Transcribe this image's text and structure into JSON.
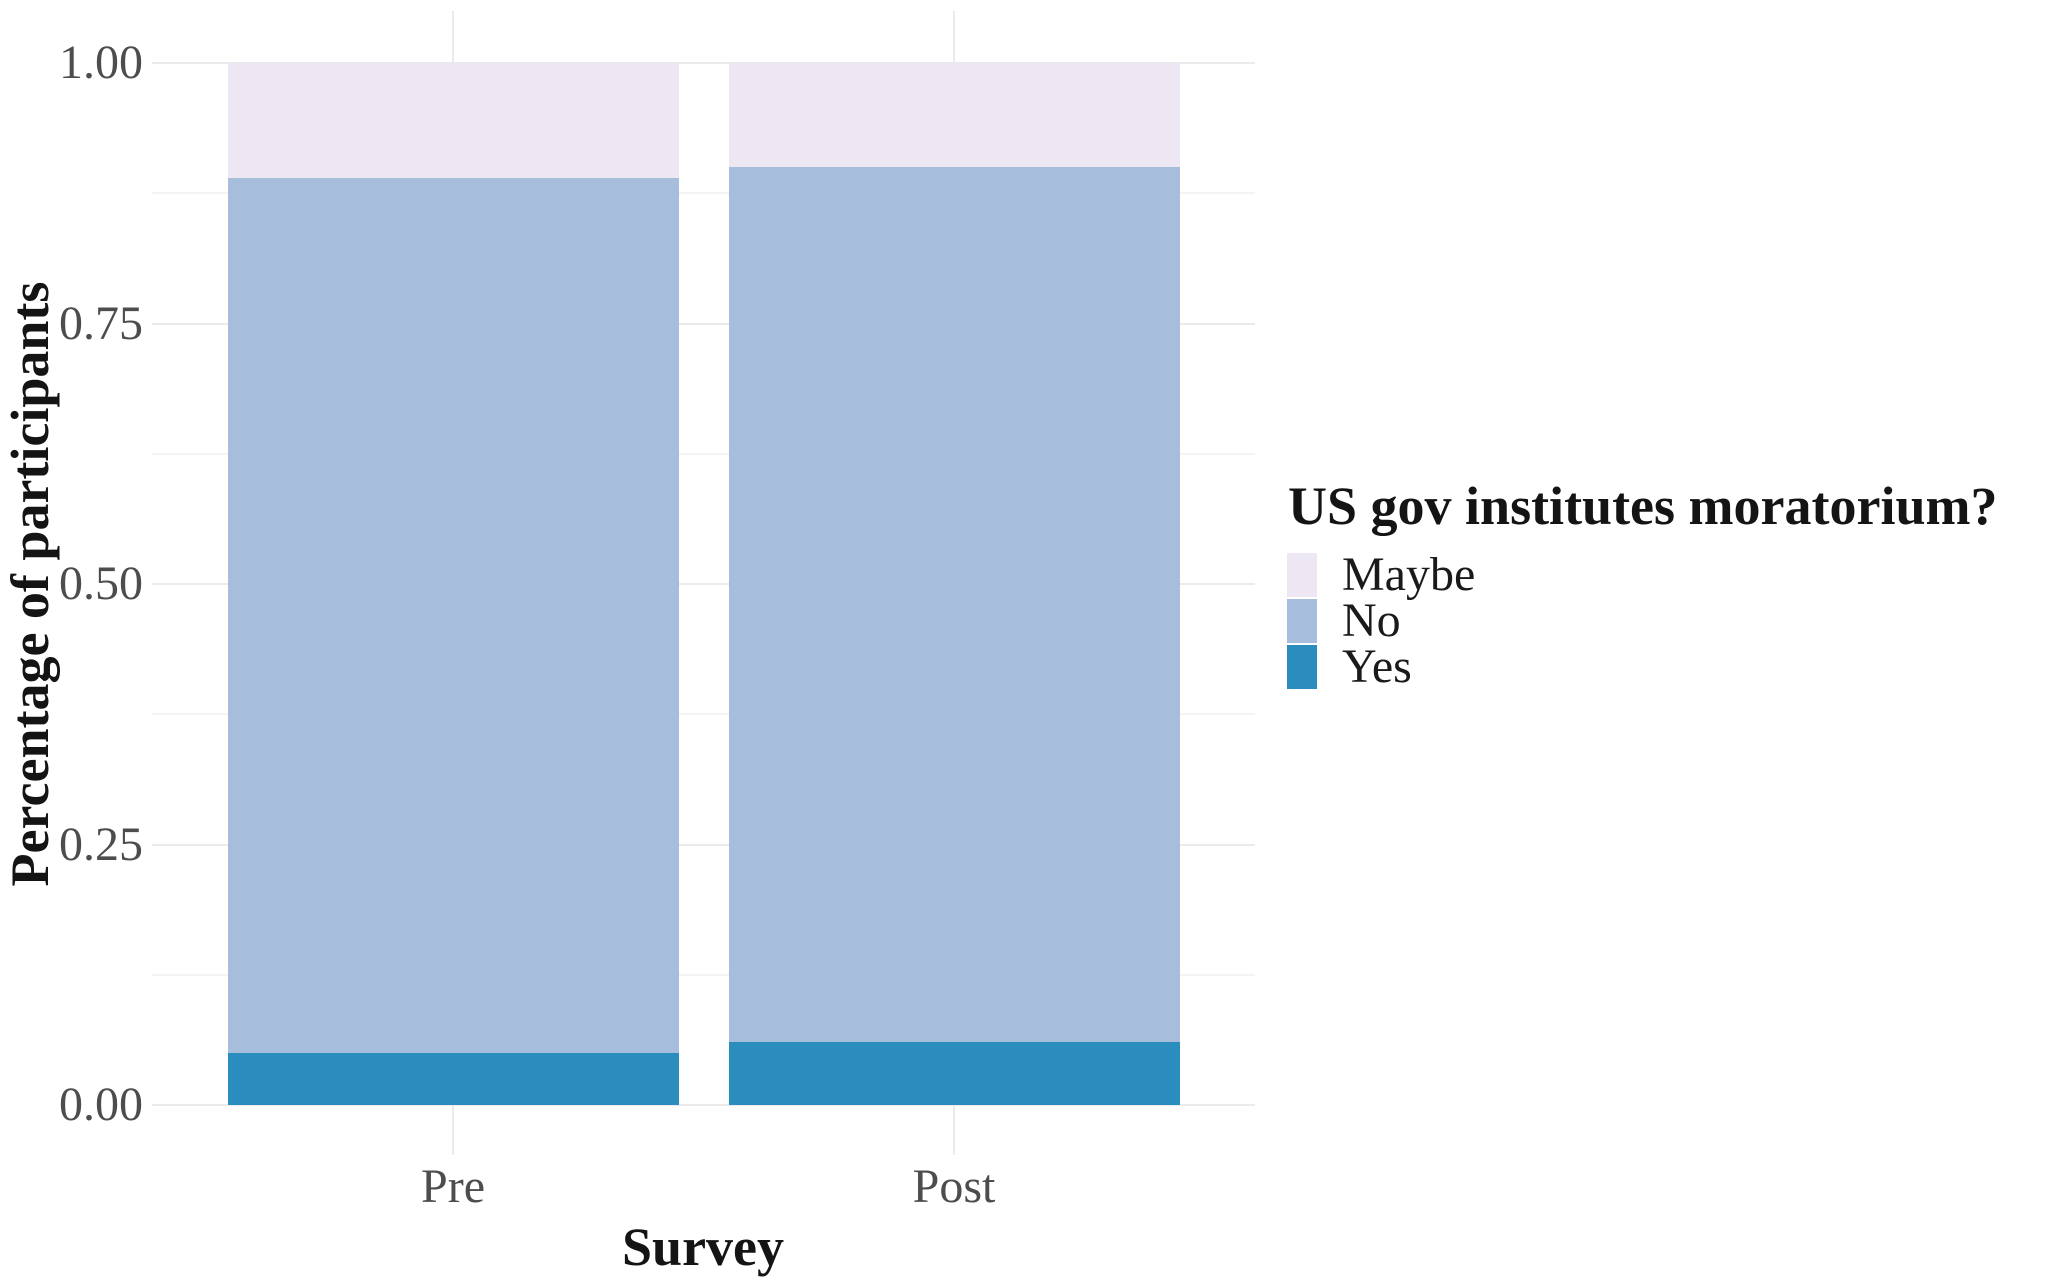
{
  "chart_data": {
    "type": "bar",
    "stacked": true,
    "title": "",
    "xlabel": "Survey",
    "ylabel": "Percentage of participants",
    "legend_title": "US gov institutes moratorium?",
    "legend_position": "right",
    "categories": [
      "Pre",
      "Post"
    ],
    "series": [
      {
        "name": "Maybe",
        "color": "#ece7f2",
        "values": [
          0.11,
          0.1
        ]
      },
      {
        "name": "No",
        "color": "#a6bddb",
        "values": [
          0.84,
          0.84
        ]
      },
      {
        "name": "Yes",
        "color": "#2b8cbe",
        "values": [
          0.05,
          0.06
        ]
      }
    ],
    "stack_order_bottom_to_top": [
      "Yes",
      "No",
      "Maybe"
    ],
    "ylim": [
      0,
      1
    ],
    "yticks": [
      {
        "value": 0.0,
        "label": "0.00"
      },
      {
        "value": 0.25,
        "label": "0.25"
      },
      {
        "value": 0.5,
        "label": "0.50"
      },
      {
        "value": 0.75,
        "label": "0.75"
      },
      {
        "value": 1.0,
        "label": "1.00"
      }
    ],
    "minor_gridline_values": [
      0.125,
      0.375,
      0.625,
      0.875
    ],
    "grid": "horizontal major+minor, vertical at category centers",
    "colors": {
      "grid_major": "#ebebeb",
      "grid_minor": "#f4f4f4",
      "tick_text": "#4d4d4d",
      "title_text": "#141414",
      "background": "#ffffff"
    }
  }
}
